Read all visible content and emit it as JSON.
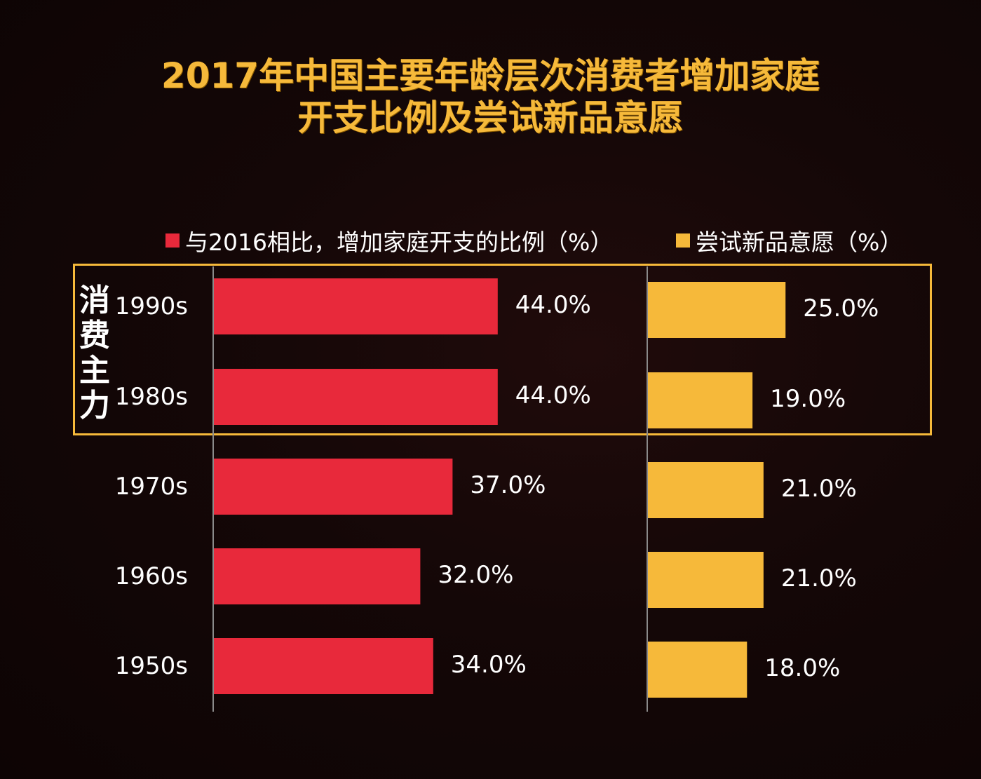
{
  "title": {
    "line1": "2017年中国主要年龄层次消费者增加家庭",
    "line2": "开支比例及尝试新品意愿"
  },
  "highlight_label": "消费主力",
  "chart_data": {
    "type": "bar",
    "orientation": "horizontal",
    "title": "2017年中国主要年龄层次消费者增加家庭开支比例及尝试新品意愿",
    "categories": [
      "1990s",
      "1980s",
      "1970s",
      "1960s",
      "1950s"
    ],
    "series": [
      {
        "name": "与2016相比，增加家庭开支的比例（%）",
        "color": "#e8293b",
        "values": [
          44.0,
          44.0,
          37.0,
          32.0,
          34.0
        ],
        "labels": [
          "44.0%",
          "44.0%",
          "37.0%",
          "32.0%",
          "34.0%"
        ]
      },
      {
        "name": "尝试新品意愿（%）",
        "color": "#f6b93a",
        "values": [
          25.0,
          19.0,
          21.0,
          21.0,
          18.0
        ],
        "labels": [
          "25.0%",
          "19.0%",
          "21.0%",
          "21.0%",
          "18.0%"
        ]
      }
    ],
    "highlight": {
      "categories": [
        "1990s",
        "1980s"
      ],
      "label": "消费主力"
    },
    "legend_position": "top",
    "grid": false
  }
}
